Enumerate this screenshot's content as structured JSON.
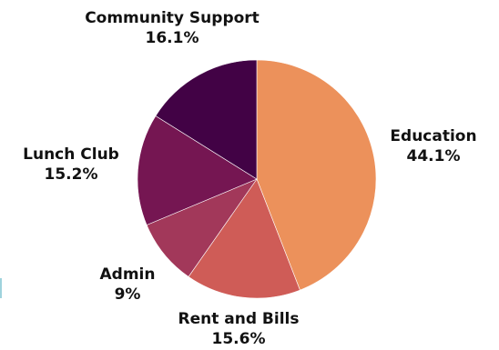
{
  "chart_data": {
    "type": "pie",
    "categories": [
      "Education",
      "Rent and Bills",
      "Admin",
      "Lunch Club",
      "Community Support"
    ],
    "values": [
      44.1,
      15.6,
      9.0,
      15.2,
      16.1
    ],
    "value_labels": [
      "44.1%",
      "15.6%",
      "9%",
      "15.2%",
      "16.1%"
    ],
    "colors": [
      "#ec915b",
      "#cf5c57",
      "#a2385a",
      "#751652",
      "#420245"
    ],
    "start_angle_deg": 0,
    "direction": "clockwise",
    "legend": "none",
    "title": ""
  }
}
